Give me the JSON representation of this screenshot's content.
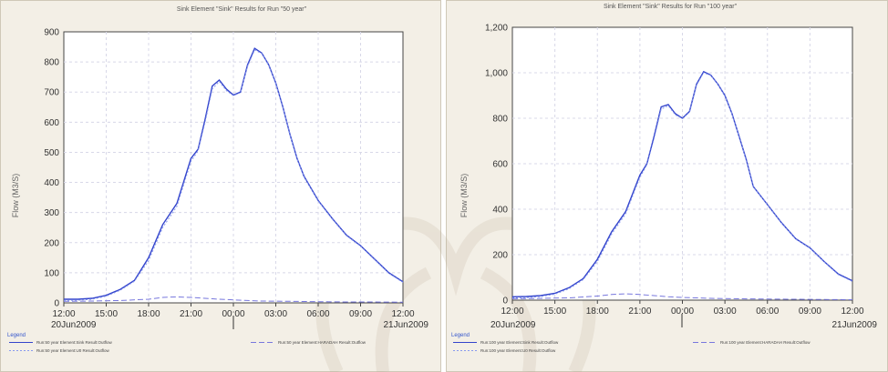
{
  "chart_data": [
    {
      "type": "line",
      "title": "Sink Element \"Sink\" Results for Run \"50 year\"",
      "ylabel": "Flow (M3/S)",
      "xlabel": "",
      "ylim": [
        0,
        900
      ],
      "yticks": [
        0,
        100,
        200,
        300,
        400,
        500,
        600,
        700,
        800,
        900
      ],
      "ytick_labels": [
        "0",
        "100",
        "200",
        "300",
        "400",
        "500",
        "600",
        "700",
        "800",
        "900"
      ],
      "xlim": [
        0,
        24
      ],
      "xticks": [
        0,
        3,
        6,
        9,
        12,
        15,
        18,
        21,
        24
      ],
      "xtick_labels": [
        "12:00",
        "15:00",
        "18:00",
        "21:00",
        "00:00",
        "03:00",
        "06:00",
        "09:00",
        "12:00"
      ],
      "date_labels": {
        "start": "20Jun2009",
        "end": "21Jun2009"
      },
      "grid": true,
      "legend_title": "Legend",
      "series": [
        {
          "name": "Run:50 year Element:Sink Result:Outflow",
          "style": "solid",
          "color": "#3344cc",
          "x": [
            0,
            1,
            2,
            3,
            4,
            5,
            6,
            7,
            8,
            9,
            9.5,
            10,
            10.5,
            11,
            11.5,
            12,
            12.5,
            13,
            13.5,
            14,
            14.5,
            15,
            15.5,
            16,
            16.5,
            17,
            18,
            19,
            20,
            21,
            22,
            23,
            24
          ],
          "y": [
            12,
            12,
            15,
            25,
            45,
            75,
            150,
            260,
            330,
            480,
            510,
            610,
            720,
            740,
            710,
            690,
            700,
            790,
            845,
            830,
            790,
            730,
            650,
            560,
            480,
            420,
            340,
            280,
            225,
            190,
            145,
            100,
            70
          ]
        },
        {
          "name": "Run:50 year Element:HARADAH Result:Outflow",
          "style": "dashed",
          "color": "#7777dd",
          "x": [
            0,
            2,
            4,
            6,
            7,
            8,
            9,
            10,
            11,
            12,
            13,
            14,
            16,
            18,
            20,
            22,
            24
          ],
          "y": [
            5,
            6,
            8,
            12,
            18,
            20,
            18,
            15,
            12,
            10,
            8,
            6,
            5,
            4,
            3,
            3,
            2
          ]
        },
        {
          "name": "Run:50 year Element:U0 Result:Outflow",
          "style": "dotted",
          "color": "#8899ee",
          "x": [
            0,
            1,
            2,
            3,
            4,
            5,
            6,
            7,
            8,
            9,
            9.5,
            10,
            10.5,
            11,
            11.5,
            12,
            12.5,
            13,
            13.5,
            14,
            14.5,
            15,
            15.5,
            16,
            16.5,
            17,
            18,
            19,
            20,
            21,
            22,
            23,
            24
          ],
          "y": [
            8,
            9,
            12,
            22,
            42,
            72,
            140,
            250,
            320,
            470,
            505,
            600,
            710,
            735,
            705,
            688,
            698,
            785,
            840,
            828,
            788,
            728,
            648,
            558,
            478,
            418,
            338,
            278,
            223,
            188,
            143,
            98,
            68
          ]
        }
      ]
    },
    {
      "type": "line",
      "title": "Sink Element \"Sink\" Results for Run \"100 year\"",
      "ylabel": "Flow (M3/S)",
      "xlabel": "",
      "ylim": [
        0,
        1200
      ],
      "yticks": [
        0,
        200,
        400,
        600,
        800,
        1000,
        1200
      ],
      "ytick_labels": [
        "0",
        "200",
        "400",
        "600",
        "800",
        "1,000",
        "1,200"
      ],
      "xlim": [
        0,
        24
      ],
      "xticks": [
        0,
        3,
        6,
        9,
        12,
        15,
        18,
        21,
        24
      ],
      "xtick_labels": [
        "12:00",
        "15:00",
        "18:00",
        "21:00",
        "00:00",
        "03:00",
        "06:00",
        "09:00",
        "12:00"
      ],
      "date_labels": {
        "start": "20Jun2009",
        "end": "21Jun2009"
      },
      "grid": true,
      "legend_title": "Legend",
      "series": [
        {
          "name": "Run:100 year Element:Sink Result:Outflow",
          "style": "solid",
          "color": "#3344cc",
          "x": [
            0,
            1,
            2,
            3,
            4,
            5,
            6,
            7,
            8,
            9,
            9.5,
            10,
            10.5,
            11,
            11.5,
            12,
            12.5,
            13,
            13.5,
            14,
            14.5,
            15,
            15.5,
            16,
            16.5,
            17,
            18,
            19,
            20,
            21,
            22,
            23,
            24
          ],
          "y": [
            15,
            16,
            20,
            30,
            55,
            95,
            180,
            300,
            390,
            550,
            600,
            720,
            850,
            860,
            820,
            800,
            830,
            950,
            1005,
            990,
            950,
            900,
            820,
            720,
            620,
            500,
            420,
            340,
            270,
            230,
            170,
            115,
            85
          ]
        },
        {
          "name": "Run:100 year Element:HARADAH Result:Outflow",
          "style": "dashed",
          "color": "#7777dd",
          "x": [
            0,
            2,
            4,
            6,
            7,
            8,
            9,
            10,
            11,
            12,
            13,
            14,
            16,
            18,
            20,
            22,
            24
          ],
          "y": [
            6,
            8,
            10,
            18,
            25,
            28,
            25,
            20,
            15,
            12,
            10,
            8,
            6,
            5,
            4,
            3,
            2
          ]
        },
        {
          "name": "Run:100 year Element:U0 Result:Outflow",
          "style": "dotted",
          "color": "#8899ee",
          "x": [
            0,
            1,
            2,
            3,
            4,
            5,
            6,
            7,
            8,
            9,
            9.5,
            10,
            10.5,
            11,
            11.5,
            12,
            12.5,
            13,
            13.5,
            14,
            14.5,
            15,
            15.5,
            16,
            16.5,
            17,
            18,
            19,
            20,
            21,
            22,
            23,
            24
          ],
          "y": [
            10,
            11,
            16,
            26,
            50,
            90,
            170,
            290,
            380,
            540,
            595,
            710,
            840,
            855,
            815,
            798,
            826,
            945,
            1000,
            988,
            948,
            898,
            818,
            718,
            618,
            498,
            418,
            338,
            268,
            228,
            168,
            112,
            82
          ]
        }
      ]
    }
  ]
}
